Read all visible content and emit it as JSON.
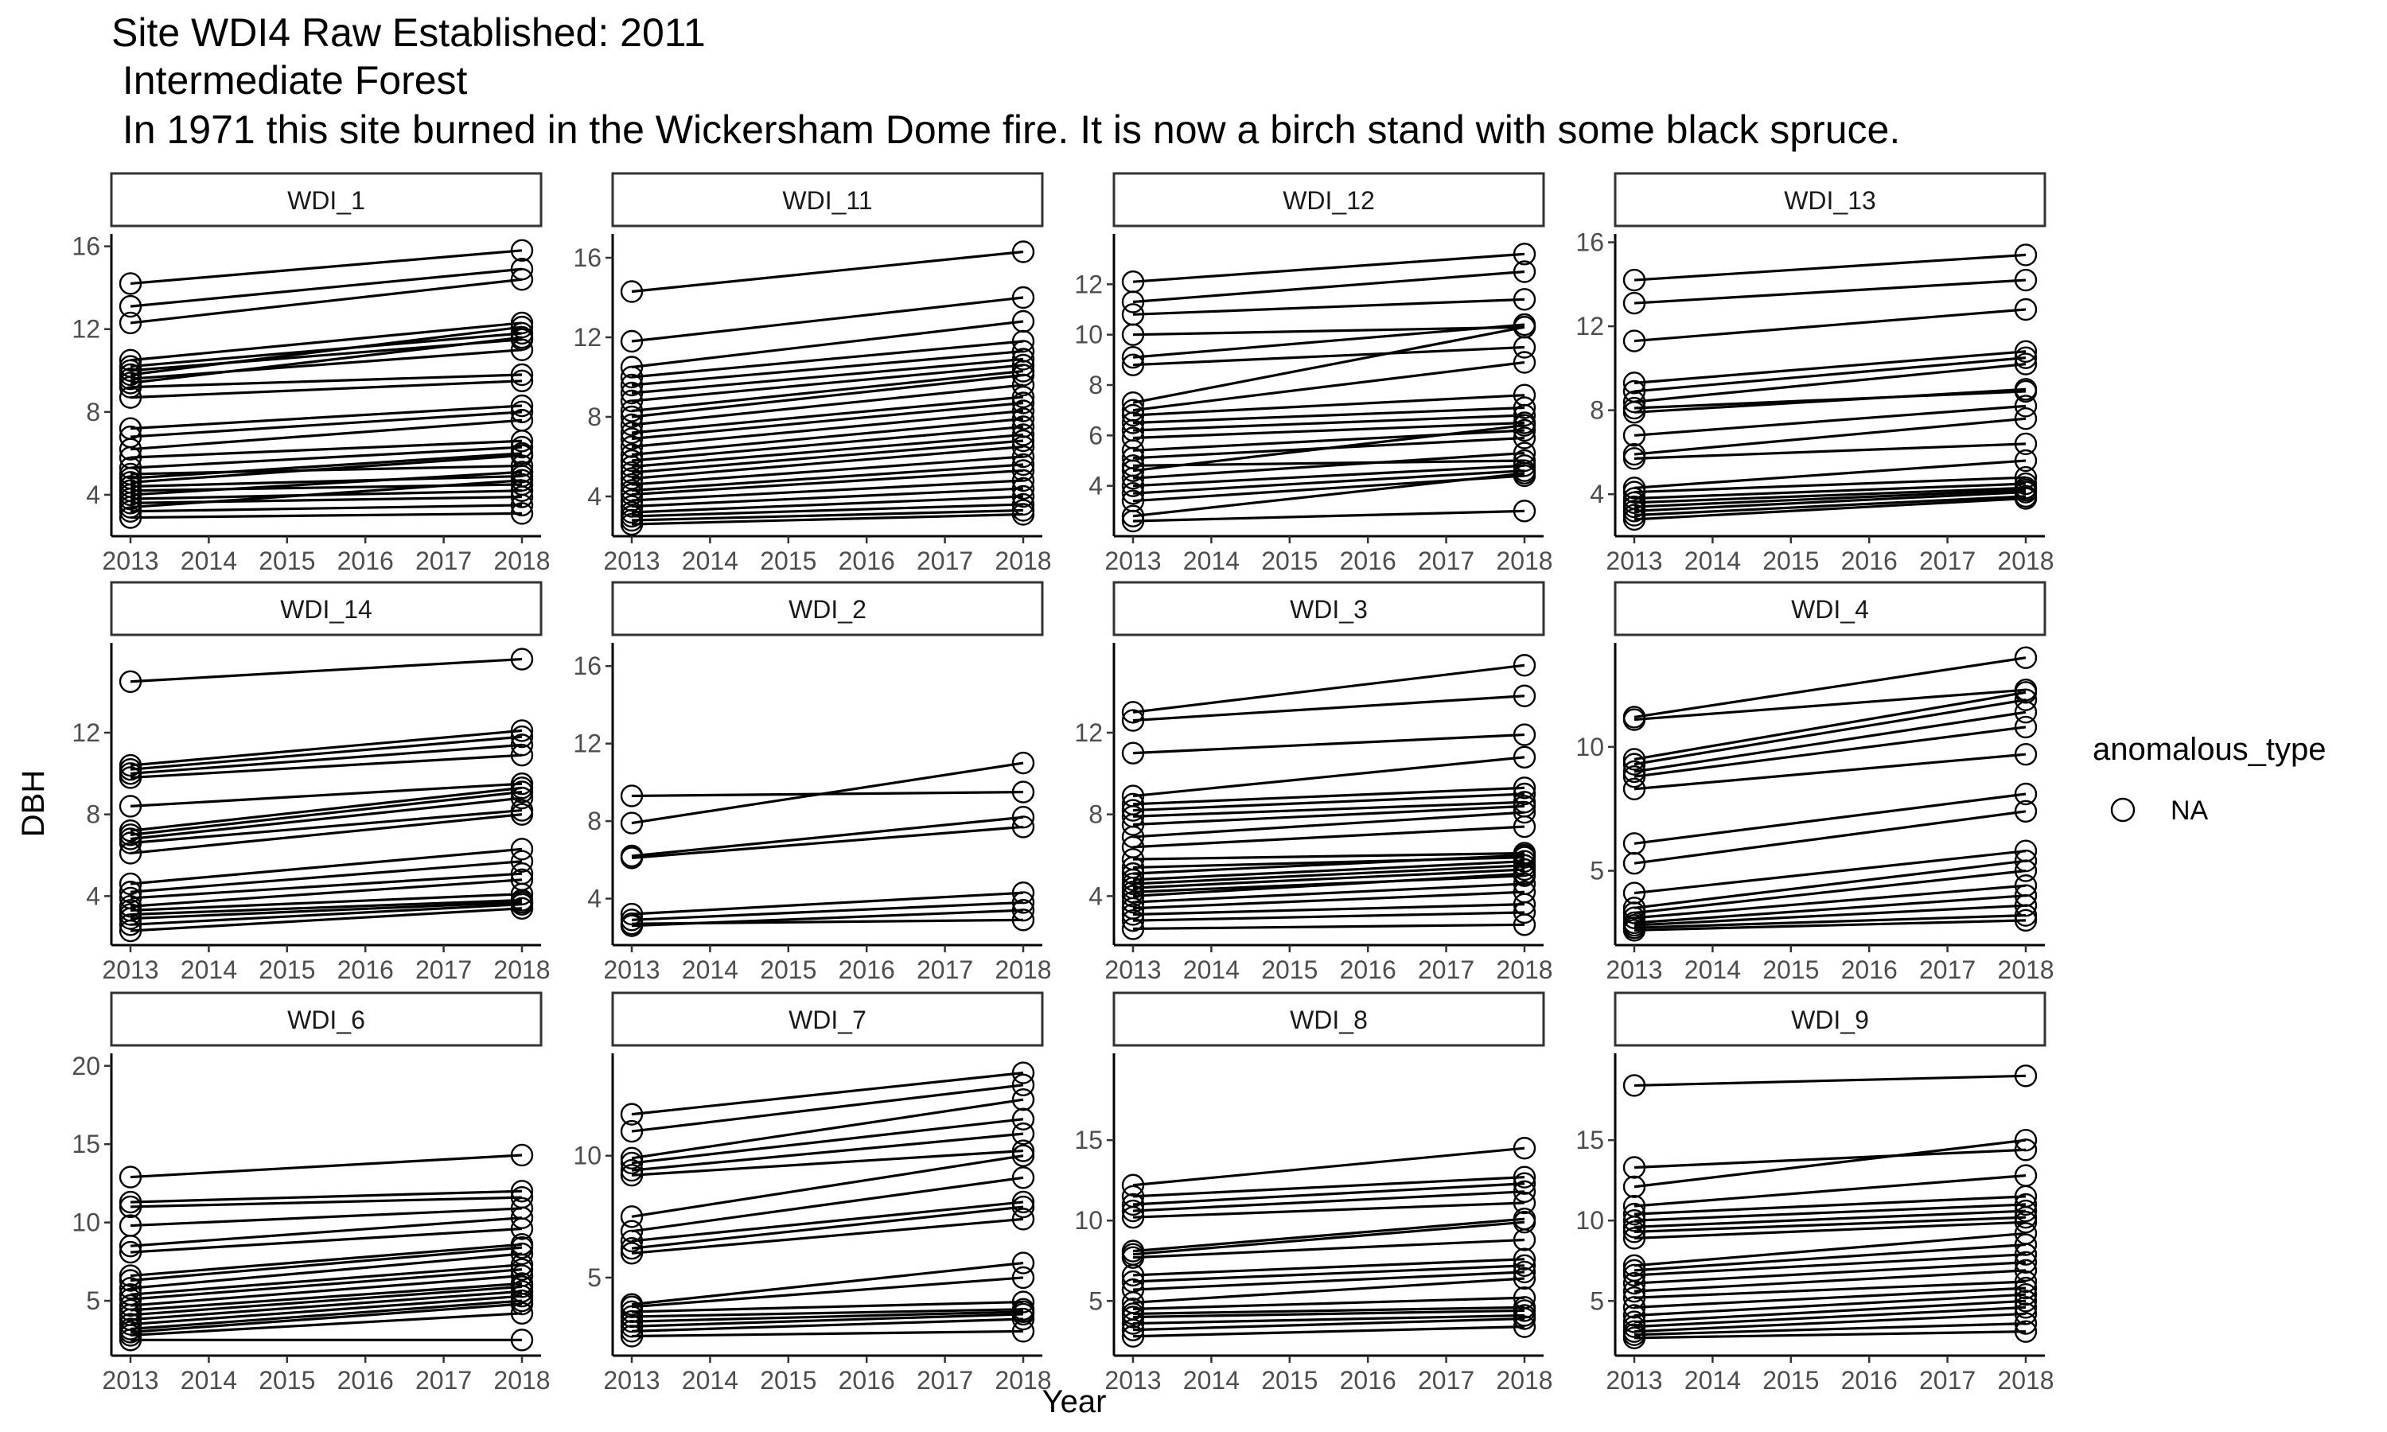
{
  "chart_data": {
    "type": "line",
    "title": "Site WDI4 Raw Established: 2011",
    "subtitle_line1": " Intermediate Forest",
    "subtitle_line2": " In 1971 this site burned in the Wickersham Dome fire. It is now a birch stand with some black spruce.",
    "xlabel": "Year",
    "ylabel": "DBH",
    "x_ticks": [
      "2013",
      "2014",
      "2015",
      "2016",
      "2017",
      "2018"
    ],
    "xlim": [
      2013,
      2018
    ],
    "legend": {
      "title": "anomalous_type",
      "entries": [
        "NA"
      ],
      "marker": "open-circle",
      "position": "right"
    },
    "grid": false,
    "line_color": "#000000",
    "panels": [
      {
        "name": "WDI_1",
        "ylim": [
          2,
          16.6
        ],
        "yticks": [
          4,
          8,
          12,
          16
        ],
        "trees": [
          [
            14.2,
            15.8
          ],
          [
            13.1,
            14.9
          ],
          [
            12.3,
            14.4
          ],
          [
            10.5,
            12.3
          ],
          [
            10.2,
            11.8
          ],
          [
            10.0,
            11.5
          ],
          [
            9.8,
            12.1
          ],
          [
            9.6,
            11.0
          ],
          [
            9.4,
            11.6
          ],
          [
            9.2,
            9.8
          ],
          [
            8.7,
            9.5
          ],
          [
            7.2,
            8.3
          ],
          [
            6.8,
            8.0
          ],
          [
            6.2,
            7.6
          ],
          [
            5.8,
            6.6
          ],
          [
            5.3,
            6.3
          ],
          [
            5.0,
            5.4
          ],
          [
            4.8,
            6.0
          ],
          [
            4.6,
            5.9
          ],
          [
            4.4,
            4.9
          ],
          [
            4.2,
            4.5
          ],
          [
            4.0,
            5.1
          ],
          [
            3.8,
            4.2
          ],
          [
            3.6,
            3.9
          ],
          [
            3.4,
            4.7
          ],
          [
            3.2,
            3.5
          ],
          [
            2.9,
            3.1
          ]
        ]
      },
      {
        "name": "WDI_11",
        "ylim": [
          2,
          17.2
        ],
        "yticks": [
          4,
          8,
          12,
          16
        ],
        "trees": [
          [
            14.3,
            16.3
          ],
          [
            11.8,
            14.0
          ],
          [
            10.5,
            12.8
          ],
          [
            10.0,
            11.8
          ],
          [
            9.6,
            11.3
          ],
          [
            9.2,
            10.9
          ],
          [
            8.8,
            10.6
          ],
          [
            8.3,
            10.3
          ],
          [
            8.0,
            10.1
          ],
          [
            7.6,
            9.6
          ],
          [
            7.2,
            9.0
          ],
          [
            6.9,
            8.7
          ],
          [
            6.5,
            8.3
          ],
          [
            6.1,
            7.9
          ],
          [
            5.8,
            7.5
          ],
          [
            5.5,
            7.1
          ],
          [
            5.2,
            6.8
          ],
          [
            4.9,
            6.5
          ],
          [
            4.6,
            6.0
          ],
          [
            4.3,
            5.6
          ],
          [
            4.1,
            5.3
          ],
          [
            3.8,
            4.8
          ],
          [
            3.5,
            4.4
          ],
          [
            3.2,
            4.0
          ],
          [
            3.0,
            3.6
          ],
          [
            2.8,
            3.3
          ],
          [
            2.6,
            3.1
          ]
        ]
      },
      {
        "name": "WDI_12",
        "ylim": [
          2,
          14
        ],
        "yticks": [
          4,
          6,
          8,
          10,
          12
        ],
        "trees": [
          [
            12.1,
            13.2
          ],
          [
            11.3,
            12.5
          ],
          [
            10.8,
            11.4
          ],
          [
            10.0,
            10.3
          ],
          [
            9.1,
            10.4
          ],
          [
            8.8,
            9.5
          ],
          [
            7.3,
            10.3
          ],
          [
            7.0,
            8.9
          ],
          [
            6.8,
            7.6
          ],
          [
            6.5,
            7.1
          ],
          [
            6.2,
            6.8
          ],
          [
            5.9,
            6.5
          ],
          [
            5.4,
            6.2
          ],
          [
            5.1,
            5.9
          ],
          [
            4.8,
            5.0
          ],
          [
            4.6,
            6.4
          ],
          [
            4.3,
            5.3
          ],
          [
            4.0,
            4.8
          ],
          [
            3.7,
            4.6
          ],
          [
            3.4,
            4.4
          ],
          [
            2.8,
            4.5
          ],
          [
            2.6,
            3.0
          ]
        ]
      },
      {
        "name": "WDI_13",
        "ylim": [
          2,
          16.4
        ],
        "yticks": [
          4,
          8,
          12,
          16
        ],
        "trees": [
          [
            14.2,
            15.4
          ],
          [
            13.1,
            14.2
          ],
          [
            11.3,
            12.8
          ],
          [
            9.3,
            10.8
          ],
          [
            8.9,
            10.5
          ],
          [
            8.4,
            10.2
          ],
          [
            8.1,
            8.9
          ],
          [
            7.9,
            9.0
          ],
          [
            6.8,
            8.2
          ],
          [
            5.9,
            7.6
          ],
          [
            5.7,
            6.4
          ],
          [
            4.3,
            5.6
          ],
          [
            4.1,
            4.8
          ],
          [
            3.8,
            4.5
          ],
          [
            3.6,
            4.3
          ],
          [
            3.4,
            4.2
          ],
          [
            3.2,
            4.1
          ],
          [
            3.0,
            3.9
          ],
          [
            2.8,
            3.8
          ]
        ]
      },
      {
        "name": "WDI_14",
        "ylim": [
          1.6,
          16.4
        ],
        "yticks": [
          4,
          8,
          12
        ],
        "trees": [
          [
            14.5,
            15.6
          ],
          [
            10.4,
            12.1
          ],
          [
            10.2,
            11.8
          ],
          [
            10.0,
            11.4
          ],
          [
            9.8,
            10.9
          ],
          [
            8.4,
            9.5
          ],
          [
            7.2,
            9.3
          ],
          [
            7.0,
            9.1
          ],
          [
            6.8,
            8.8
          ],
          [
            6.6,
            8.2
          ],
          [
            6.1,
            8.0
          ],
          [
            4.6,
            6.3
          ],
          [
            4.2,
            5.7
          ],
          [
            3.9,
            5.1
          ],
          [
            3.5,
            4.8
          ],
          [
            3.3,
            4.1
          ],
          [
            3.1,
            3.8
          ],
          [
            2.9,
            3.7
          ],
          [
            2.6,
            3.6
          ],
          [
            2.3,
            3.4
          ]
        ]
      },
      {
        "name": "WDI_2",
        "ylim": [
          1.6,
          17.2
        ],
        "yticks": [
          4,
          8,
          12,
          16
        ],
        "trees": [
          [
            9.3,
            9.5
          ],
          [
            7.9,
            11.0
          ],
          [
            6.2,
            8.2
          ],
          [
            6.1,
            7.7
          ],
          [
            3.2,
            4.3
          ],
          [
            2.9,
            3.8
          ],
          [
            2.7,
            2.9
          ],
          [
            2.6,
            3.4
          ]
        ]
      },
      {
        "name": "WDI_3",
        "ylim": [
          1.6,
          16.4
        ],
        "yticks": [
          4,
          8,
          12
        ],
        "trees": [
          [
            13.0,
            15.3
          ],
          [
            12.6,
            13.8
          ],
          [
            11.0,
            11.9
          ],
          [
            8.9,
            10.8
          ],
          [
            8.5,
            9.3
          ],
          [
            8.2,
            9.0
          ],
          [
            7.9,
            8.6
          ],
          [
            7.5,
            8.4
          ],
          [
            6.9,
            8.1
          ],
          [
            6.4,
            7.4
          ],
          [
            5.8,
            6.1
          ],
          [
            5.4,
            5.9
          ],
          [
            5.1,
            6.0
          ],
          [
            4.8,
            5.7
          ],
          [
            4.6,
            5.5
          ],
          [
            4.4,
            5.3
          ],
          [
            4.2,
            5.0
          ],
          [
            4.0,
            5.1
          ],
          [
            3.7,
            4.6
          ],
          [
            3.4,
            4.2
          ],
          [
            3.1,
            3.6
          ],
          [
            2.8,
            3.2
          ],
          [
            2.4,
            2.6
          ]
        ]
      },
      {
        "name": "WDI_4",
        "ylim": [
          2,
          14.2
        ],
        "yticks": [
          5,
          10
        ],
        "trees": [
          [
            11.2,
            13.6
          ],
          [
            11.1,
            12.3
          ],
          [
            9.5,
            12.2
          ],
          [
            9.3,
            11.9
          ],
          [
            9.0,
            11.4
          ],
          [
            8.8,
            10.8
          ],
          [
            8.3,
            9.7
          ],
          [
            6.1,
            8.1
          ],
          [
            5.3,
            7.4
          ],
          [
            4.1,
            5.8
          ],
          [
            3.5,
            5.4
          ],
          [
            3.3,
            5.0
          ],
          [
            3.1,
            4.4
          ],
          [
            2.9,
            4.0
          ],
          [
            2.8,
            3.6
          ],
          [
            2.7,
            3.2
          ],
          [
            2.6,
            3.0
          ]
        ]
      },
      {
        "name": "WDI_6",
        "ylim": [
          1.5,
          20.8
        ],
        "yticks": [
          5,
          10,
          15,
          20
        ],
        "trees": [
          [
            12.9,
            14.3
          ],
          [
            11.3,
            12.0
          ],
          [
            11.0,
            11.6
          ],
          [
            9.8,
            10.9
          ],
          [
            8.5,
            10.3
          ],
          [
            8.1,
            9.6
          ],
          [
            6.6,
            8.6
          ],
          [
            6.3,
            8.4
          ],
          [
            5.8,
            8.0
          ],
          [
            5.4,
            7.3
          ],
          [
            5.1,
            7.0
          ],
          [
            4.7,
            6.6
          ],
          [
            4.4,
            6.1
          ],
          [
            4.1,
            5.9
          ],
          [
            3.8,
            5.6
          ],
          [
            3.5,
            5.3
          ],
          [
            3.2,
            5.0
          ],
          [
            3.0,
            4.8
          ],
          [
            2.8,
            4.2
          ],
          [
            2.5,
            2.5
          ]
        ]
      },
      {
        "name": "WDI_7",
        "ylim": [
          1.8,
          14.2
        ],
        "yticks": [
          5,
          10
        ],
        "trees": [
          [
            11.7,
            13.4
          ],
          [
            11.0,
            12.9
          ],
          [
            9.9,
            12.3
          ],
          [
            9.7,
            11.5
          ],
          [
            9.4,
            10.9
          ],
          [
            9.2,
            10.2
          ],
          [
            7.5,
            10.0
          ],
          [
            6.9,
            9.1
          ],
          [
            6.5,
            8.1
          ],
          [
            6.2,
            7.9
          ],
          [
            6.0,
            7.4
          ],
          [
            3.9,
            5.6
          ],
          [
            3.8,
            5.0
          ],
          [
            3.6,
            4.0
          ],
          [
            3.4,
            3.7
          ],
          [
            3.2,
            3.6
          ],
          [
            3.0,
            3.5
          ],
          [
            2.8,
            3.3
          ],
          [
            2.6,
            2.8
          ]
        ]
      },
      {
        "name": "WDI_8",
        "ylim": [
          1.6,
          20.4
        ],
        "yticks": [
          5,
          10,
          15
        ],
        "trees": [
          [
            12.2,
            14.5
          ],
          [
            11.5,
            12.7
          ],
          [
            11.0,
            12.3
          ],
          [
            10.6,
            11.8
          ],
          [
            10.2,
            11.1
          ],
          [
            8.1,
            10.1
          ],
          [
            7.9,
            9.9
          ],
          [
            7.7,
            8.8
          ],
          [
            6.6,
            7.6
          ],
          [
            6.2,
            7.2
          ],
          [
            5.7,
            6.8
          ],
          [
            4.9,
            6.4
          ],
          [
            4.5,
            5.2
          ],
          [
            4.2,
            4.6
          ],
          [
            4.0,
            4.4
          ],
          [
            3.6,
            4.1
          ],
          [
            3.2,
            3.9
          ],
          [
            2.8,
            3.4
          ]
        ]
      },
      {
        "name": "WDI_9",
        "ylim": [
          1.6,
          20.4
        ],
        "yticks": [
          5,
          10,
          15
        ],
        "trees": [
          [
            18.4,
            19.0
          ],
          [
            13.3,
            14.4
          ],
          [
            12.1,
            15.0
          ],
          [
            10.9,
            12.8
          ],
          [
            10.4,
            11.5
          ],
          [
            10.0,
            11.0
          ],
          [
            9.6,
            10.6
          ],
          [
            9.3,
            10.2
          ],
          [
            8.9,
            9.9
          ],
          [
            7.2,
            9.2
          ],
          [
            6.9,
            8.5
          ],
          [
            6.6,
            7.9
          ],
          [
            6.1,
            7.4
          ],
          [
            5.6,
            6.9
          ],
          [
            5.2,
            6.2
          ],
          [
            4.6,
            5.8
          ],
          [
            4.1,
            5.4
          ],
          [
            3.7,
            5.0
          ],
          [
            3.4,
            4.6
          ],
          [
            3.1,
            4.2
          ],
          [
            2.9,
            3.6
          ],
          [
            2.7,
            3.1
          ]
        ]
      }
    ]
  }
}
